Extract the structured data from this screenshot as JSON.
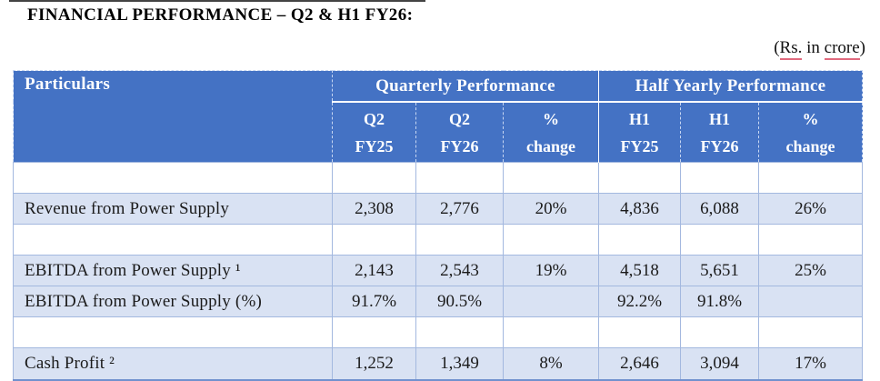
{
  "page": {
    "title": "FINANCIAL PERFORMANCE – Q2 & H1 FY26:",
    "unit_note": {
      "open": "(",
      "word_rs": "Rs.",
      "middle": " in ",
      "word_crore": "crore",
      "close": ")"
    }
  },
  "colors": {
    "header_bg": "#4472C4",
    "band_row_bg": "#D9E2F3",
    "cell_border": "#A3B8DF",
    "spellcheck_underline": "#E06A7E"
  },
  "table": {
    "header": {
      "particulars": "Particulars",
      "groups": [
        {
          "label": "Quarterly Performance"
        },
        {
          "label": "Half Yearly Performance"
        }
      ],
      "subheaders": [
        {
          "line1": "Q2",
          "line2": "FY25"
        },
        {
          "line1": "Q2",
          "line2": "FY26"
        },
        {
          "line1": "%",
          "line2": "change"
        },
        {
          "line1": "H1",
          "line2": "FY25"
        },
        {
          "line1": "H1",
          "line2": "FY26"
        },
        {
          "line1": "%",
          "line2": "change"
        }
      ]
    },
    "rows": [
      {
        "label": "",
        "shaded": false,
        "values": [
          "",
          "",
          "",
          "",
          "",
          ""
        ]
      },
      {
        "label": "Revenue from Power Supply",
        "shaded": true,
        "values": [
          "2,308",
          "2,776",
          "20%",
          "4,836",
          "6,088",
          "26%"
        ]
      },
      {
        "label": "",
        "shaded": false,
        "values": [
          "",
          "",
          "",
          "",
          "",
          ""
        ]
      },
      {
        "label": "EBITDA from Power Supply ¹",
        "shaded": true,
        "values": [
          "2,143",
          "2,543",
          "19%",
          "4,518",
          "5,651",
          "25%"
        ]
      },
      {
        "label": "EBITDA from Power Supply (%)",
        "shaded": true,
        "values": [
          "91.7%",
          "90.5%",
          "",
          "92.2%",
          "91.8%",
          ""
        ]
      },
      {
        "label": "",
        "shaded": false,
        "values": [
          "",
          "",
          "",
          "",
          "",
          ""
        ]
      },
      {
        "label": "Cash Profit ²",
        "shaded": true,
        "values": [
          "1,252",
          "1,349",
          "8%",
          "2,646",
          "3,094",
          "17%"
        ]
      }
    ]
  }
}
